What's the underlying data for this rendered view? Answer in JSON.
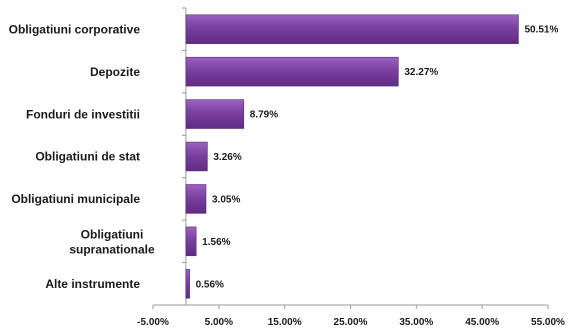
{
  "chart_data": {
    "type": "bar",
    "orientation": "horizontal",
    "categories": [
      "Obligatiuni corporative",
      "Depozite",
      "Fonduri de investitii",
      "Obligatiuni de stat",
      "Obligatiuni municipale",
      "Obligatiuni supranationale",
      "Alte instrumente"
    ],
    "values": [
      50.51,
      32.27,
      8.79,
      3.26,
      3.05,
      1.56,
      0.56
    ],
    "data_labels": [
      "50.51%",
      "32.27%",
      "8.79%",
      "3.26%",
      "3.05%",
      "1.56%",
      "0.56%"
    ],
    "xlim": [
      -5,
      55
    ],
    "x_ticks": [
      -5,
      5,
      15,
      25,
      35,
      45,
      55
    ],
    "x_tick_labels": [
      "-5.00%",
      "5.00%",
      "15.00%",
      "25.00%",
      "35.00%",
      "45.00%",
      "55.00%"
    ],
    "title": "",
    "xlabel": "",
    "ylabel": "",
    "grid": false,
    "legend": "none",
    "bar_color": "#7B3FA0",
    "bar_edge_color": "#5A2A7E",
    "axis_color": "#9a9a9a"
  }
}
